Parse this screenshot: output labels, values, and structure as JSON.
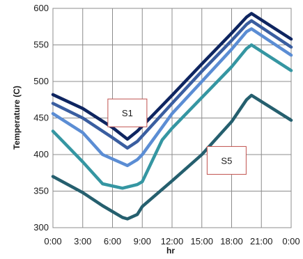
{
  "chart_data": {
    "type": "line",
    "title": "",
    "xlabel": "hr",
    "ylabel": "Temperature (C)",
    "xlim": [
      0,
      24
    ],
    "ylim": [
      300,
      600
    ],
    "x_ticks": [
      0,
      3,
      6,
      9,
      12,
      15,
      18,
      21,
      24
    ],
    "x_tick_labels": [
      "0:00",
      "3:00",
      "6:00",
      "9:00",
      "12:00",
      "15:00",
      "18:00",
      "21:00",
      "0:00"
    ],
    "y_ticks": [
      300,
      350,
      400,
      450,
      500,
      550,
      600
    ],
    "y_tick_labels": [
      "300",
      "350",
      "400",
      "450",
      "500",
      "550",
      "600"
    ],
    "grid": true,
    "legend": "none",
    "series": [
      {
        "color": "#0e2560",
        "points": [
          [
            0,
            482
          ],
          [
            3,
            463
          ],
          [
            6,
            437
          ],
          [
            7.5,
            421
          ],
          [
            8.5,
            432
          ],
          [
            12,
            481
          ],
          [
            15,
            524
          ],
          [
            18,
            566
          ],
          [
            19.5,
            588
          ],
          [
            20,
            593
          ],
          [
            24,
            558
          ]
        ]
      },
      {
        "color": "#3a5ea0",
        "points": [
          [
            0,
            470
          ],
          [
            3,
            450
          ],
          [
            6,
            423
          ],
          [
            7.5,
            409
          ],
          [
            8.5,
            418
          ],
          [
            12,
            470
          ],
          [
            15,
            514
          ],
          [
            18,
            556
          ],
          [
            19.5,
            578
          ],
          [
            20,
            583
          ],
          [
            24,
            547
          ]
        ]
      },
      {
        "color": "#5b8dd4",
        "points": [
          [
            0,
            456
          ],
          [
            3,
            430
          ],
          [
            5,
            400
          ],
          [
            7.5,
            385
          ],
          [
            8.5,
            393
          ],
          [
            9,
            400
          ],
          [
            12,
            456
          ],
          [
            15,
            500
          ],
          [
            18,
            544
          ],
          [
            19.5,
            568
          ],
          [
            20,
            572
          ],
          [
            24,
            536
          ]
        ]
      },
      {
        "color": "#3596a2",
        "points": [
          [
            0,
            432
          ],
          [
            1,
            418
          ],
          [
            3,
            390
          ],
          [
            5,
            360
          ],
          [
            7,
            354
          ],
          [
            8.5,
            359
          ],
          [
            9,
            363
          ],
          [
            11,
            420
          ],
          [
            12,
            436
          ],
          [
            15,
            478
          ],
          [
            18,
            520
          ],
          [
            19.5,
            545
          ],
          [
            20,
            550
          ],
          [
            24,
            515
          ]
        ]
      },
      {
        "color": "#255f6e",
        "points": [
          [
            0,
            370
          ],
          [
            3,
            348
          ],
          [
            5,
            330
          ],
          [
            7,
            314
          ],
          [
            7.5,
            312
          ],
          [
            8.5,
            318
          ],
          [
            9,
            329
          ],
          [
            12,
            364
          ],
          [
            15,
            400
          ],
          [
            18,
            445
          ],
          [
            19.5,
            475
          ],
          [
            20,
            481
          ],
          [
            24,
            447
          ]
        ]
      }
    ],
    "annotations": [
      {
        "text": "S1",
        "x": 7.5,
        "y": 457
      },
      {
        "text": "S5",
        "x": 17.5,
        "y": 392
      }
    ]
  }
}
